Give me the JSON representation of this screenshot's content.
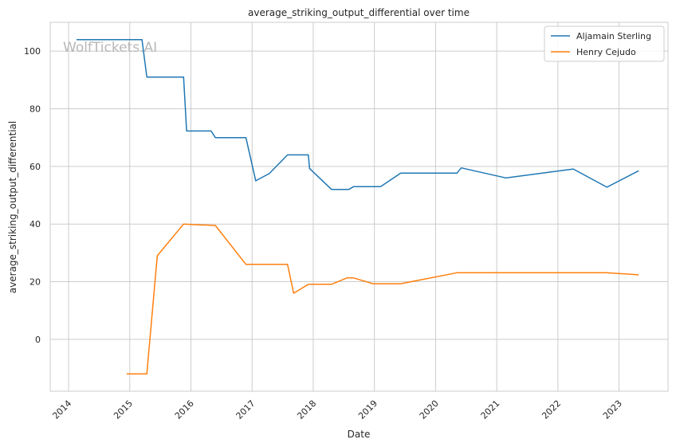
{
  "chart_data": {
    "type": "line",
    "title": "average_striking_output_differential over time",
    "xlabel": "Date",
    "ylabel": "average_striking_output_differential",
    "watermark": "WolfTickets.AI",
    "xlim": [
      2013.7,
      2023.8
    ],
    "ylim": [
      -18,
      110
    ],
    "xticks": [
      2014,
      2015,
      2016,
      2017,
      2018,
      2019,
      2020,
      2021,
      2022,
      2023
    ],
    "yticks": [
      0,
      20,
      40,
      60,
      80,
      100
    ],
    "grid": true,
    "legend_position": "top-right",
    "series": [
      {
        "name": "Aljamain Sterling",
        "color": "#1f77b4",
        "x": [
          2014.13,
          2015.2,
          2015.28,
          2015.88,
          2015.93,
          2016.33,
          2016.4,
          2016.9,
          2017.06,
          2017.28,
          2017.58,
          2017.92,
          2017.94,
          2018.3,
          2018.58,
          2018.66,
          2019.1,
          2019.43,
          2020.35,
          2020.42,
          2021.15,
          2022.25,
          2022.8,
          2023.32
        ],
        "y": [
          104,
          104,
          91,
          91,
          72.3,
          72.3,
          70,
          70,
          55,
          57.5,
          64,
          64,
          59.3,
          52,
          52,
          53,
          53,
          57.7,
          57.7,
          59.5,
          56,
          59.1,
          52.8,
          58.5
        ]
      },
      {
        "name": "Henry Cejudo",
        "color": "#ff7f0e",
        "x": [
          2014.95,
          2015.28,
          2015.45,
          2015.88,
          2016.4,
          2016.9,
          2017.58,
          2017.68,
          2017.92,
          2018.3,
          2018.55,
          2018.66,
          2018.98,
          2019.43,
          2020.35,
          2022.8,
          2023.32
        ],
        "y": [
          -12,
          -12,
          29,
          40,
          39.5,
          26,
          26,
          16,
          19.1,
          19.1,
          21.3,
          21.3,
          19.3,
          19.3,
          23.1,
          23.1,
          22.4
        ]
      }
    ]
  }
}
